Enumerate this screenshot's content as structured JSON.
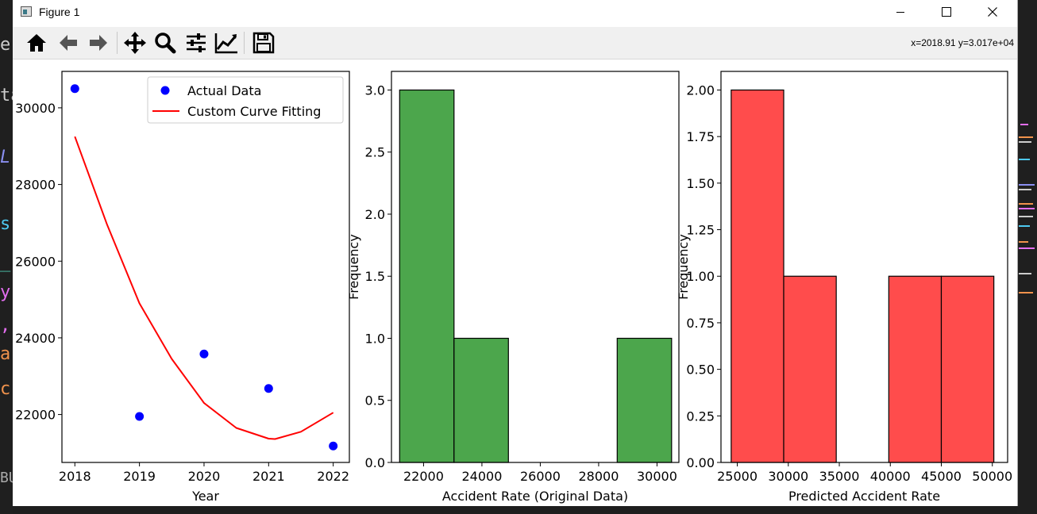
{
  "background": {
    "left_fragments": [
      "e",
      "ta",
      "L",
      "s",
      "_",
      "y",
      ",",
      "a",
      "c",
      "BU"
    ]
  },
  "window": {
    "title": "Figure 1",
    "minimize_label": "Minimize",
    "maximize_label": "Maximize",
    "close_label": "Close"
  },
  "toolbar": {
    "buttons": [
      "home-icon",
      "back-icon",
      "forward-icon",
      "pan-icon",
      "zoom-icon",
      "configure-subplots-icon",
      "edit-axis-icon",
      "save-icon"
    ],
    "coordinates": "x=2018.91 y=3.017e+04"
  },
  "colors": {
    "scatter": "#0000ff",
    "curve": "#ff0000",
    "hist_original": "#4ca64c",
    "hist_predicted": "#ff4c4c",
    "bar_edge": "#000000"
  },
  "chart_data": [
    {
      "type": "scatter",
      "xlabel": "Year",
      "ylabel": "",
      "xlim": [
        2017.8,
        2022.25
      ],
      "ylim": [
        20750,
        30950
      ],
      "xticks": [
        2018,
        2019,
        2020,
        2021,
        2022
      ],
      "xtick_labels": [
        "2018",
        "2019",
        "2020",
        "2021",
        "2022"
      ],
      "yticks": [
        22000,
        24000,
        26000,
        28000,
        30000
      ],
      "ytick_labels": [
        "22000",
        "24000",
        "26000",
        "28000",
        "30000"
      ],
      "legend_position": "top-right",
      "series": [
        {
          "name": "Actual Data",
          "kind": "scatter",
          "x": [
            2018,
            2019,
            2020,
            2021,
            2022
          ],
          "y": [
            30500,
            21950,
            23580,
            22680,
            21180
          ]
        },
        {
          "name": "Custom Curve Fitting",
          "kind": "line",
          "x": [
            2018,
            2018.5,
            2019,
            2019.5,
            2020,
            2020.5,
            2021,
            2021.1,
            2021.5,
            2022
          ],
          "y": [
            29250,
            26950,
            24900,
            23450,
            22300,
            21650,
            21370,
            21360,
            21550,
            22050
          ]
        }
      ]
    },
    {
      "type": "bar",
      "xlabel": "Accident Rate (Original Data)",
      "ylabel": "Frequency",
      "xlim": [
        20900,
        30750
      ],
      "ylim": [
        0,
        3.15
      ],
      "xticks": [
        22000,
        24000,
        26000,
        28000,
        30000
      ],
      "xtick_labels": [
        "22000",
        "24000",
        "26000",
        "28000",
        "30000"
      ],
      "yticks": [
        0,
        0.5,
        1.0,
        1.5,
        2.0,
        2.5,
        3.0
      ],
      "ytick_labels": [
        "0.0",
        "0.5",
        "1.0",
        "1.5",
        "2.0",
        "2.5",
        "3.0"
      ],
      "bin_edges": [
        21180,
        23044,
        24908,
        26772,
        28636,
        30500
      ],
      "values": [
        3,
        1,
        0,
        0,
        1
      ]
    },
    {
      "type": "bar",
      "xlabel": "Predicted Accident Rate",
      "ylabel": "Frequency",
      "xlim": [
        23400,
        51500
      ],
      "ylim": [
        0,
        2.1
      ],
      "xticks": [
        25000,
        30000,
        35000,
        40000,
        45000,
        50000
      ],
      "xtick_labels": [
        "25000",
        "30000",
        "35000",
        "40000",
        "45000",
        "50000"
      ],
      "yticks": [
        0,
        0.25,
        0.5,
        0.75,
        1.0,
        1.25,
        1.5,
        1.75,
        2.0
      ],
      "ytick_labels": [
        "0.00",
        "0.25",
        "0.50",
        "0.75",
        "1.00",
        "1.25",
        "1.50",
        "1.75",
        "2.00"
      ],
      "bin_edges": [
        24400,
        29550,
        34700,
        39850,
        45000,
        50150
      ],
      "values": [
        2,
        1,
        0,
        1,
        1
      ]
    }
  ]
}
